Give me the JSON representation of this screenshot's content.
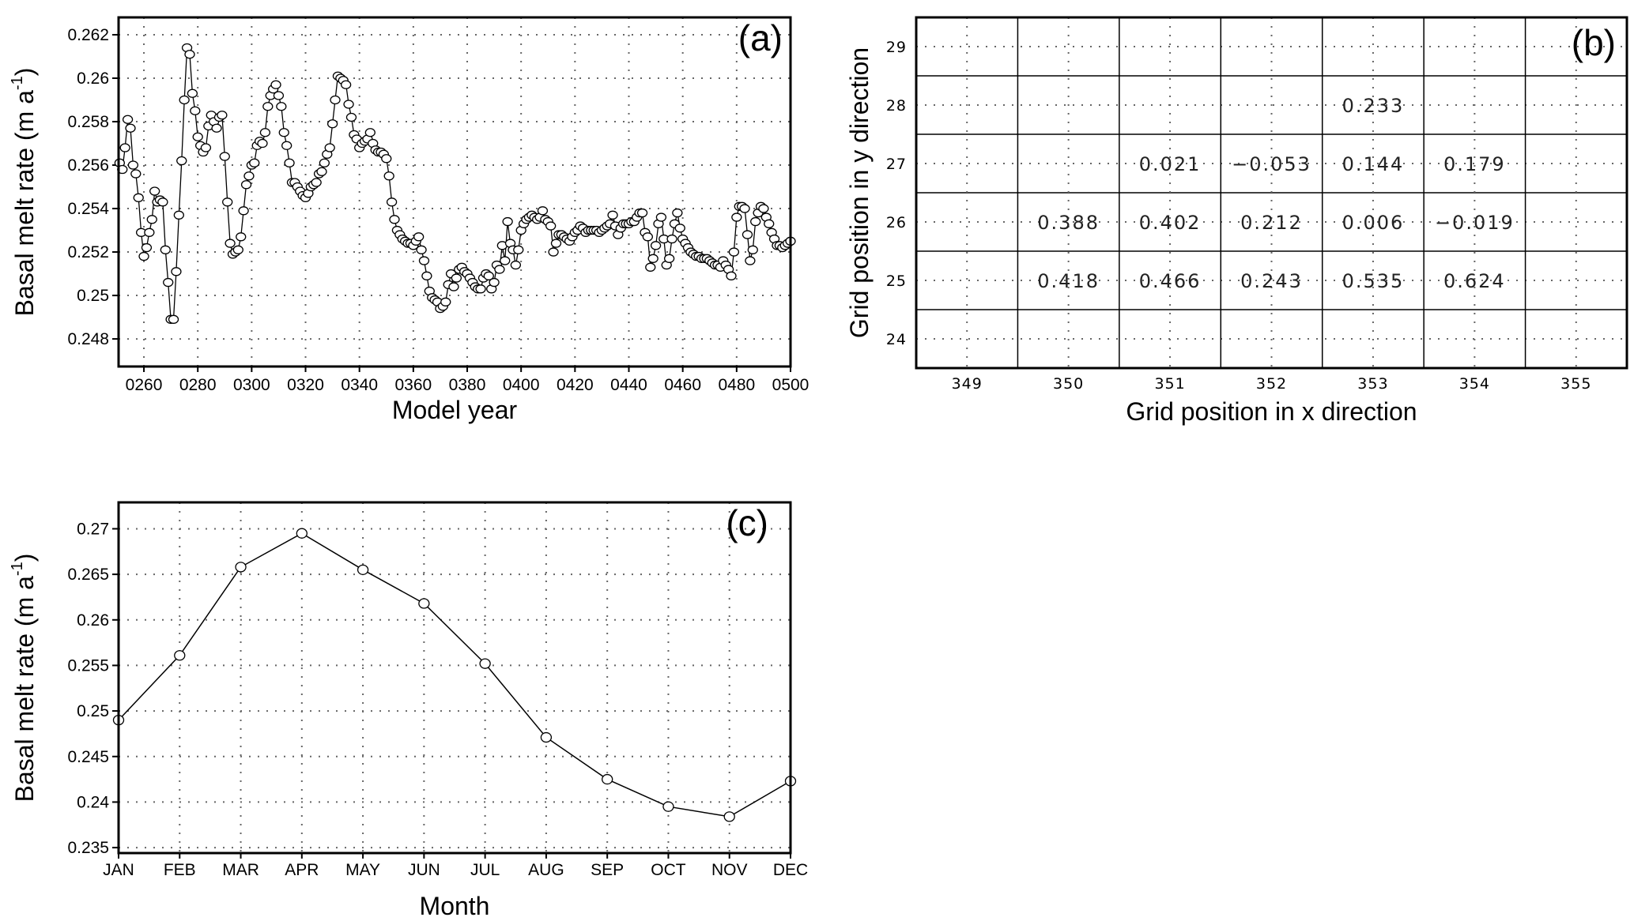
{
  "chart_data": [
    {
      "panel_label": "(a)",
      "type": "line",
      "marker": "open-circle",
      "xlabel": "Model year",
      "ylabel": {
        "text": "Basal melt rate (m a",
        "superscript": "-1",
        "suffix": ")"
      },
      "xlim": [
        250.6,
        500
      ],
      "ylim": [
        0.24673,
        0.2628
      ],
      "grid": true,
      "xticks": [
        {
          "value": 260,
          "label": "0260"
        },
        {
          "value": 280,
          "label": "0280"
        },
        {
          "value": 300,
          "label": "0300"
        },
        {
          "value": 320,
          "label": "0320"
        },
        {
          "value": 340,
          "label": "0340"
        },
        {
          "value": 360,
          "label": "0360"
        },
        {
          "value": 380,
          "label": "0380"
        },
        {
          "value": 400,
          "label": "0400"
        },
        {
          "value": 420,
          "label": "0420"
        },
        {
          "value": 440,
          "label": "0440"
        },
        {
          "value": 460,
          "label": "0460"
        },
        {
          "value": 480,
          "label": "0480"
        },
        {
          "value": 500,
          "label": "0500"
        }
      ],
      "yticks": [
        {
          "value": 0.248,
          "label": "0.248"
        },
        {
          "value": 0.25,
          "label": "0.25"
        },
        {
          "value": 0.252,
          "label": "0.252"
        },
        {
          "value": 0.254,
          "label": "0.254"
        },
        {
          "value": 0.256,
          "label": "0.256"
        },
        {
          "value": 0.258,
          "label": "0.258"
        },
        {
          "value": 0.26,
          "label": "0.26"
        },
        {
          "value": 0.262,
          "label": "0.262"
        }
      ],
      "x": [
        251,
        252,
        253,
        254,
        255,
        256,
        257,
        258,
        259,
        260,
        261,
        262,
        263,
        264,
        265,
        266,
        267,
        268,
        269,
        270,
        271,
        272,
        273,
        274,
        275,
        276,
        277,
        278,
        279,
        280,
        281,
        282,
        283,
        284,
        285,
        286,
        287,
        288,
        289,
        290,
        291,
        292,
        293,
        294,
        295,
        296,
        297,
        298,
        299,
        300,
        301,
        302,
        303,
        304,
        305,
        306,
        307,
        308,
        309,
        310,
        311,
        312,
        313,
        314,
        315,
        316,
        317,
        318,
        319,
        320,
        321,
        322,
        323,
        324,
        325,
        326,
        327,
        328,
        329,
        330,
        331,
        332,
        333,
        334,
        335,
        336,
        337,
        338,
        339,
        340,
        341,
        342,
        343,
        344,
        345,
        346,
        347,
        348,
        349,
        350,
        351,
        352,
        353,
        354,
        355,
        356,
        357,
        358,
        359,
        360,
        361,
        362,
        363,
        364,
        365,
        366,
        367,
        368,
        369,
        370,
        371,
        372,
        373,
        374,
        375,
        376,
        377,
        378,
        379,
        380,
        381,
        382,
        383,
        384,
        385,
        386,
        387,
        388,
        389,
        390,
        391,
        392,
        393,
        394,
        395,
        396,
        397,
        398,
        399,
        400,
        401,
        402,
        403,
        404,
        405,
        406,
        407,
        408,
        409,
        410,
        411,
        412,
        413,
        414,
        415,
        416,
        417,
        418,
        419,
        420,
        421,
        422,
        423,
        424,
        425,
        426,
        427,
        428,
        429,
        430,
        431,
        432,
        433,
        434,
        435,
        436,
        437,
        438,
        439,
        440,
        441,
        442,
        443,
        444,
        445,
        446,
        447,
        448,
        449,
        450,
        451,
        452,
        453,
        454,
        455,
        456,
        457,
        458,
        459,
        460,
        461,
        462,
        463,
        464,
        465,
        466,
        467,
        468,
        469,
        470,
        471,
        472,
        473,
        474,
        475,
        476,
        477,
        478,
        479,
        480,
        481,
        482,
        483,
        484,
        485,
        486,
        487,
        488,
        489,
        490,
        491,
        492,
        493,
        494,
        495,
        496,
        497,
        498,
        499,
        500
      ],
      "y": [
        0.2561,
        0.2558,
        0.2568,
        0.2581,
        0.2577,
        0.256,
        0.2556,
        0.2545,
        0.2529,
        0.2518,
        0.2522,
        0.2529,
        0.2535,
        0.2548,
        0.2543,
        0.2544,
        0.2543,
        0.2521,
        0.2506,
        0.2489,
        0.2489,
        0.2511,
        0.2537,
        0.2562,
        0.259,
        0.2614,
        0.2611,
        0.2593,
        0.2585,
        0.2573,
        0.2569,
        0.2566,
        0.2568,
        0.2578,
        0.2583,
        0.258,
        0.2577,
        0.2582,
        0.2583,
        0.2564,
        0.2543,
        0.2524,
        0.2519,
        0.252,
        0.2521,
        0.2527,
        0.2539,
        0.2551,
        0.2555,
        0.256,
        0.2561,
        0.2569,
        0.2571,
        0.257,
        0.2575,
        0.2587,
        0.2592,
        0.2595,
        0.2597,
        0.2592,
        0.2587,
        0.2575,
        0.2569,
        0.2561,
        0.2552,
        0.2552,
        0.255,
        0.2548,
        0.2546,
        0.2545,
        0.2547,
        0.255,
        0.2551,
        0.2552,
        0.2556,
        0.2557,
        0.2561,
        0.2565,
        0.2568,
        0.2579,
        0.259,
        0.2601,
        0.26,
        0.2599,
        0.2597,
        0.2588,
        0.2582,
        0.2574,
        0.2572,
        0.2568,
        0.257,
        0.2571,
        0.2572,
        0.2575,
        0.257,
        0.2567,
        0.2566,
        0.2566,
        0.2565,
        0.2563,
        0.2555,
        0.2543,
        0.2535,
        0.253,
        0.2528,
        0.2526,
        0.2525,
        0.2524,
        0.2524,
        0.2523,
        0.2525,
        0.2527,
        0.2521,
        0.2516,
        0.2509,
        0.2502,
        0.2499,
        0.2498,
        0.2497,
        0.2494,
        0.2495,
        0.2497,
        0.2505,
        0.251,
        0.2504,
        0.2508,
        0.2512,
        0.2513,
        0.2511,
        0.251,
        0.2508,
        0.2506,
        0.2504,
        0.2503,
        0.2503,
        0.2508,
        0.251,
        0.2509,
        0.2503,
        0.2506,
        0.2514,
        0.2512,
        0.2523,
        0.2516,
        0.2534,
        0.2524,
        0.2521,
        0.2514,
        0.2521,
        0.253,
        0.2533,
        0.2535,
        0.2536,
        0.2537,
        0.2536,
        0.2535,
        0.2536,
        0.2539,
        0.2535,
        0.2534,
        0.2532,
        0.252,
        0.2524,
        0.2528,
        0.2528,
        0.2527,
        0.2526,
        0.2525,
        0.2527,
        0.2529,
        0.253,
        0.2532,
        0.2531,
        0.2529,
        0.253,
        0.253,
        0.253,
        0.253,
        0.2529,
        0.253,
        0.2531,
        0.2532,
        0.2533,
        0.2537,
        0.2532,
        0.2528,
        0.2531,
        0.2533,
        0.2533,
        0.2533,
        0.2534,
        0.2534,
        0.2536,
        0.2538,
        0.2538,
        0.2529,
        0.2527,
        0.2513,
        0.2517,
        0.2523,
        0.2533,
        0.2536,
        0.2526,
        0.2514,
        0.2517,
        0.2526,
        0.2533,
        0.2538,
        0.2531,
        0.2526,
        0.2524,
        0.2522,
        0.252,
        0.2519,
        0.2518,
        0.2518,
        0.2517,
        0.2517,
        0.2517,
        0.2516,
        0.2515,
        0.2514,
        0.2514,
        0.2513,
        0.2516,
        0.2514,
        0.2512,
        0.2509,
        0.252,
        0.2536,
        0.2541,
        0.2541,
        0.254,
        0.2528,
        0.2516,
        0.2521,
        0.2534,
        0.2538,
        0.2541,
        0.254,
        0.2536,
        0.2533,
        0.2529,
        0.2526,
        0.2523,
        0.2523,
        0.2522,
        0.2523,
        0.2524,
        0.2525
      ]
    },
    {
      "panel_label": "(b)",
      "type": "table",
      "xlabel": "Grid position in x direction",
      "ylabel": "Grid position in y direction",
      "xlim": [
        348.5,
        355.5
      ],
      "ylim": [
        23.5,
        29.5
      ],
      "grid": true,
      "xticks": [
        {
          "value": 349,
          "label": "349"
        },
        {
          "value": 350,
          "label": "350"
        },
        {
          "value": 351,
          "label": "351"
        },
        {
          "value": 352,
          "label": "352"
        },
        {
          "value": 353,
          "label": "353"
        },
        {
          "value": 354,
          "label": "354"
        },
        {
          "value": 355,
          "label": "355"
        }
      ],
      "yticks": [
        {
          "value": 24,
          "label": "24"
        },
        {
          "value": 25,
          "label": "25"
        },
        {
          "value": 26,
          "label": "26"
        },
        {
          "value": 27,
          "label": "27"
        },
        {
          "value": 28,
          "label": "28"
        },
        {
          "value": 29,
          "label": "29"
        }
      ],
      "cells": [
        {
          "x": 353,
          "y": 28,
          "value": "0.233"
        },
        {
          "x": 351,
          "y": 27,
          "value": "0.021"
        },
        {
          "x": 352,
          "y": 27,
          "value": "−0.053"
        },
        {
          "x": 353,
          "y": 27,
          "value": "0.144"
        },
        {
          "x": 354,
          "y": 27,
          "value": "0.179"
        },
        {
          "x": 350,
          "y": 26,
          "value": "0.388"
        },
        {
          "x": 351,
          "y": 26,
          "value": "0.402"
        },
        {
          "x": 352,
          "y": 26,
          "value": "0.212"
        },
        {
          "x": 353,
          "y": 26,
          "value": "0.006"
        },
        {
          "x": 354,
          "y": 26,
          "value": "−0.019"
        },
        {
          "x": 350,
          "y": 25,
          "value": "0.418"
        },
        {
          "x": 351,
          "y": 25,
          "value": "0.466"
        },
        {
          "x": 352,
          "y": 25,
          "value": "0.243"
        },
        {
          "x": 353,
          "y": 25,
          "value": "0.535"
        },
        {
          "x": 354,
          "y": 25,
          "value": "0.624"
        }
      ]
    },
    {
      "panel_label": "(c)",
      "type": "line",
      "marker": "open-circle",
      "xlabel": "Month",
      "ylabel": {
        "text": "Basal melt rate (m a",
        "superscript": "-1",
        "suffix": ")"
      },
      "ylim": [
        0.2344,
        0.2729
      ],
      "grid": true,
      "categories": [
        "JAN",
        "FEB",
        "MAR",
        "APR",
        "MAY",
        "JUN",
        "JUL",
        "AUG",
        "SEP",
        "OCT",
        "NOV",
        "DEC"
      ],
      "values": [
        0.249,
        0.2561,
        0.2658,
        0.2695,
        0.2655,
        0.2618,
        0.2552,
        0.2471,
        0.2425,
        0.2395,
        0.2384,
        0.2423
      ],
      "yticks": [
        {
          "value": 0.235,
          "label": "0.235"
        },
        {
          "value": 0.24,
          "label": "0.24"
        },
        {
          "value": 0.245,
          "label": "0.245"
        },
        {
          "value": 0.25,
          "label": "0.25"
        },
        {
          "value": 0.255,
          "label": "0.255"
        },
        {
          "value": 0.26,
          "label": "0.26"
        },
        {
          "value": 0.265,
          "label": "0.265"
        },
        {
          "value": 0.27,
          "label": "0.27"
        }
      ]
    }
  ]
}
